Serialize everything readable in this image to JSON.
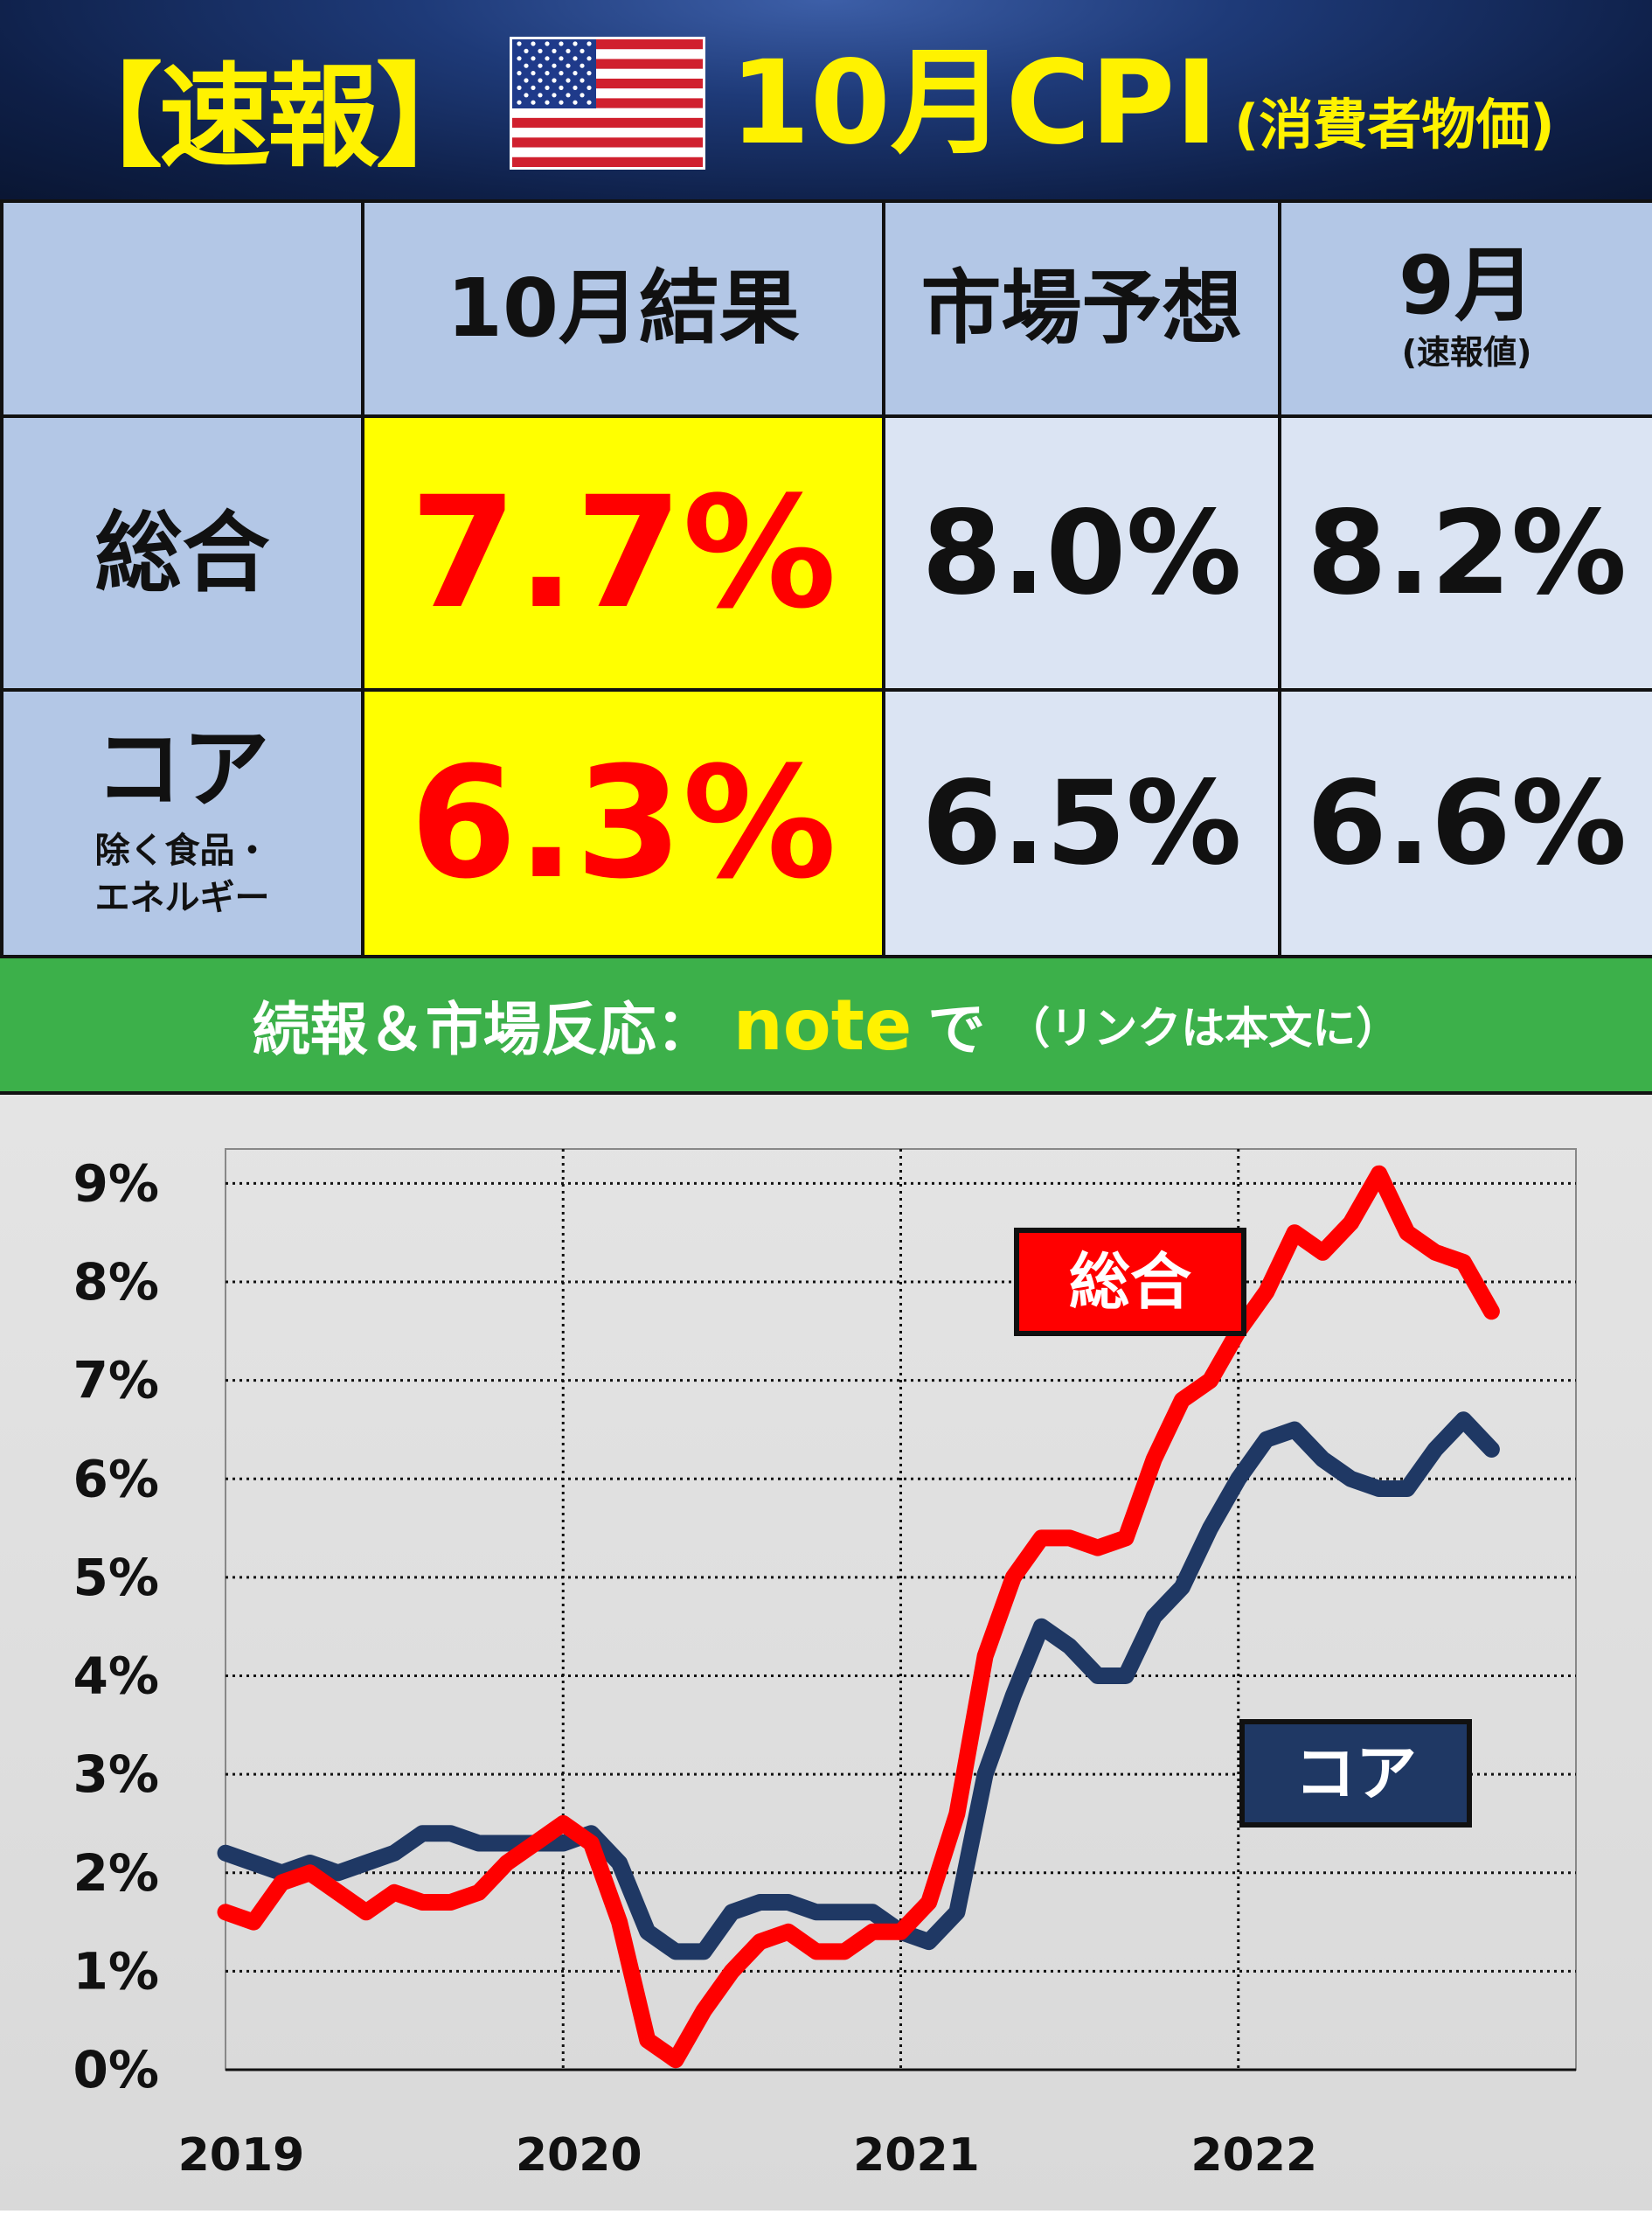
{
  "header": {
    "bracket_label": "【速報】",
    "title": "10月CPI",
    "subtitle": "(消費者物価)",
    "flag_icon": "us-flag-icon",
    "colors": {
      "title": "#fff200",
      "background": "#0e1f47"
    }
  },
  "table": {
    "columns": [
      {
        "label": "",
        "sub": ""
      },
      {
        "label": "10月結果",
        "sub": ""
      },
      {
        "label": "市場予想",
        "sub": ""
      },
      {
        "label": "9月",
        "sub": "(速報値)"
      }
    ],
    "rows": [
      {
        "label": "総合",
        "sub": "",
        "result": "7.7%",
        "forecast": "8.0%",
        "previous": "8.2%"
      },
      {
        "label": "コア",
        "sub_line1": "除く食品・",
        "sub_line2": "エネルギー",
        "result": "6.3%",
        "forecast": "6.5%",
        "previous": "6.6%"
      }
    ],
    "colors": {
      "header": "#b3c7e6",
      "highlight": "#ffff00",
      "highlight_text": "#ff0000",
      "cell": "#dbe4f3"
    }
  },
  "banner": {
    "text1": "続報＆市場反応：",
    "text2": "note",
    "text3": "で",
    "text4": "（リンクは本文に）",
    "colors": {
      "background": "#3cb04a",
      "accent": "#fff200"
    }
  },
  "chart_data": {
    "type": "line",
    "title": "",
    "xlabel": "",
    "ylabel": "",
    "x_ticks": [
      "2019",
      "2020",
      "2021",
      "2022"
    ],
    "y_ticks": [
      "0%",
      "1%",
      "2%",
      "3%",
      "4%",
      "5%",
      "6%",
      "7%",
      "8%",
      "9%"
    ],
    "ylim": [
      0,
      9
    ],
    "x_range": [
      "2019-01",
      "2022-10"
    ],
    "grid": true,
    "grid_style": "dotted",
    "x": [
      "2019-01",
      "2019-02",
      "2019-03",
      "2019-04",
      "2019-05",
      "2019-06",
      "2019-07",
      "2019-08",
      "2019-09",
      "2019-10",
      "2019-11",
      "2019-12",
      "2020-01",
      "2020-02",
      "2020-03",
      "2020-04",
      "2020-05",
      "2020-06",
      "2020-07",
      "2020-08",
      "2020-09",
      "2020-10",
      "2020-11",
      "2020-12",
      "2021-01",
      "2021-02",
      "2021-03",
      "2021-04",
      "2021-05",
      "2021-06",
      "2021-07",
      "2021-08",
      "2021-09",
      "2021-10",
      "2021-11",
      "2021-12",
      "2022-01",
      "2022-02",
      "2022-03",
      "2022-04",
      "2022-05",
      "2022-06",
      "2022-07",
      "2022-08",
      "2022-09",
      "2022-10"
    ],
    "series": [
      {
        "name": "総合",
        "color": "#ff0000",
        "label_box_color": "#ff0000",
        "values": [
          1.6,
          1.5,
          1.9,
          2.0,
          1.8,
          1.6,
          1.8,
          1.7,
          1.7,
          1.8,
          2.1,
          2.3,
          2.5,
          2.3,
          1.5,
          0.3,
          0.1,
          0.6,
          1.0,
          1.3,
          1.4,
          1.2,
          1.2,
          1.4,
          1.4,
          1.7,
          2.6,
          4.2,
          5.0,
          5.4,
          5.4,
          5.3,
          5.4,
          6.2,
          6.8,
          7.0,
          7.5,
          7.9,
          8.5,
          8.3,
          8.6,
          9.1,
          8.5,
          8.3,
          8.2,
          7.7
        ]
      },
      {
        "name": "コア",
        "color": "#1f3864",
        "label_box_color": "#1f3864",
        "values": [
          2.2,
          2.1,
          2.0,
          2.1,
          2.0,
          2.1,
          2.2,
          2.4,
          2.4,
          2.3,
          2.3,
          2.3,
          2.3,
          2.4,
          2.1,
          1.4,
          1.2,
          1.2,
          1.6,
          1.7,
          1.7,
          1.6,
          1.6,
          1.6,
          1.4,
          1.3,
          1.6,
          3.0,
          3.8,
          4.5,
          4.3,
          4.0,
          4.0,
          4.6,
          4.9,
          5.5,
          6.0,
          6.4,
          6.5,
          6.2,
          6.0,
          5.9,
          5.9,
          6.3,
          6.6,
          6.3
        ]
      }
    ]
  }
}
